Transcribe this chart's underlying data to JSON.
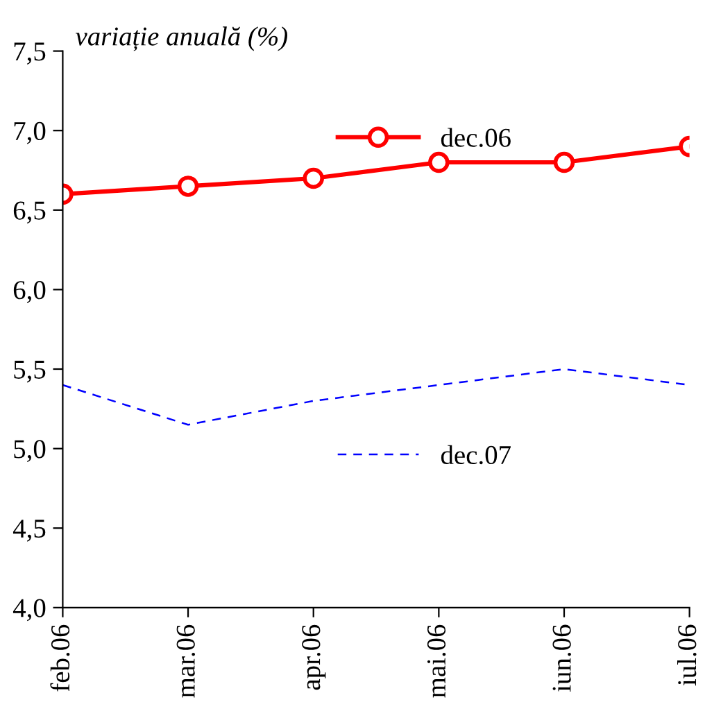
{
  "chart_data": {
    "type": "line",
    "ylabel": "variație anuală (%)",
    "categories": [
      "feb.06",
      "mar.06",
      "apr.06",
      "mai.06",
      "iun.06",
      "iul.06"
    ],
    "series": [
      {
        "name": "dec.06",
        "color": "#ff0000",
        "values": [
          6.6,
          6.65,
          6.7,
          6.8,
          6.8,
          6.9
        ],
        "marker": "circle",
        "line_style": "solid"
      },
      {
        "name": "dec.07",
        "color": "#0000ff",
        "values": [
          5.4,
          5.15,
          5.3,
          5.4,
          5.5,
          5.4
        ],
        "marker": "none",
        "line_style": "dashed"
      }
    ],
    "ylim": [
      4.0,
      7.5
    ],
    "yticks": [
      {
        "value": 4.0,
        "label": "4,0"
      },
      {
        "value": 4.5,
        "label": "4,5"
      },
      {
        "value": 5.0,
        "label": "5,0"
      },
      {
        "value": 5.5,
        "label": "5,5"
      },
      {
        "value": 6.0,
        "label": "6,0"
      },
      {
        "value": 6.5,
        "label": "6,5"
      },
      {
        "value": 7.0,
        "label": "7,0"
      },
      {
        "value": 7.5,
        "label": "7,5"
      }
    ],
    "grid": false,
    "legend": "top right"
  }
}
